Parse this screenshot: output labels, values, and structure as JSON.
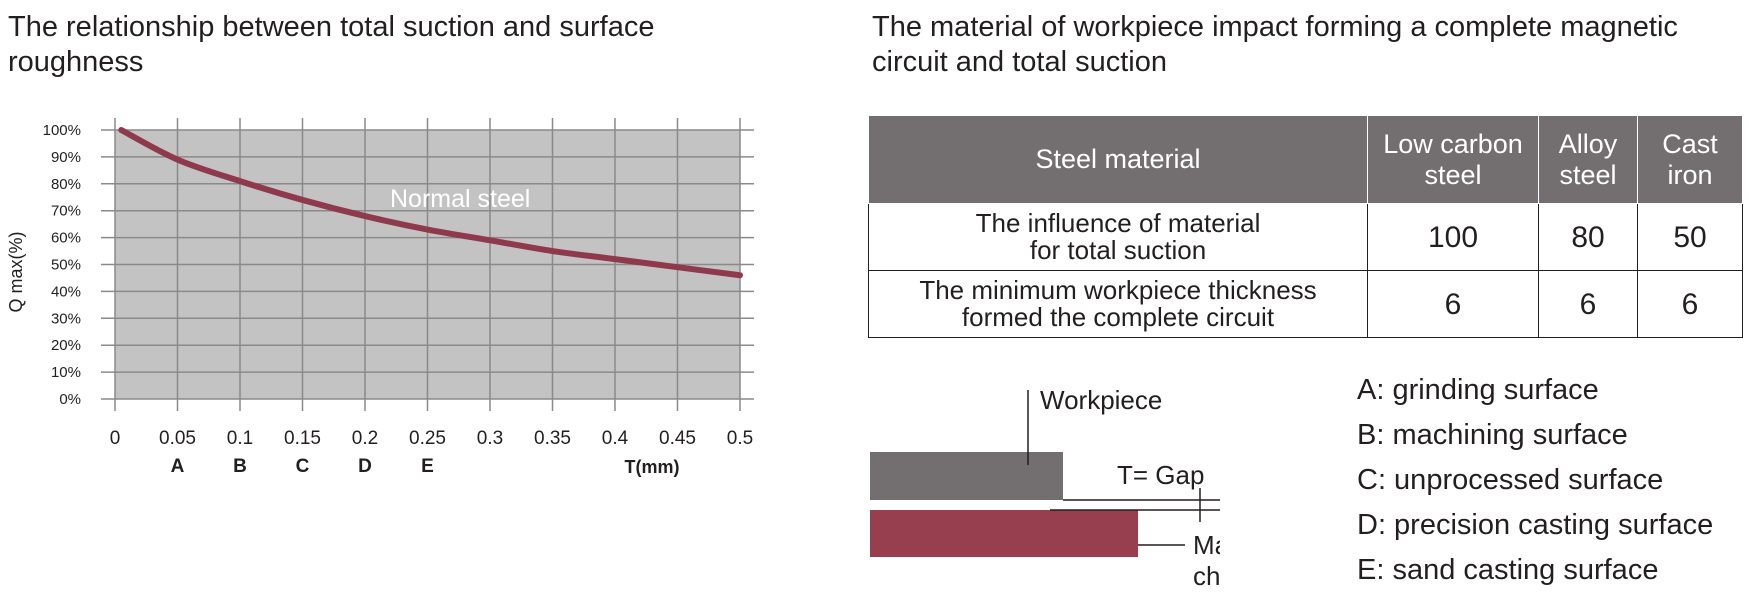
{
  "left_title": "The relationship between total suction and surface roughness",
  "right_title": "The material of workpiece impact forming a complete magnetic circuit and total suction",
  "chart_data": {
    "type": "line",
    "title": "The relationship between total suction and surface roughness",
    "xlabel": "T(mm)",
    "ylabel": "Q max(%)",
    "xlim": [
      0,
      0.5
    ],
    "ylim": [
      0,
      100
    ],
    "x_ticks": [
      "0",
      "0.05",
      "0.1",
      "0.15",
      "0.2",
      "0.25",
      "0.3",
      "0.35",
      "0.4",
      "0.45",
      "0.5"
    ],
    "y_ticks": [
      "0%",
      "10%",
      "20%",
      "30%",
      "40%",
      "50%",
      "60%",
      "70%",
      "80%",
      "90%",
      "100%"
    ],
    "x_sublabels": [
      {
        "x": 0.05,
        "label": "A"
      },
      {
        "x": 0.1,
        "label": "B"
      },
      {
        "x": 0.15,
        "label": "C"
      },
      {
        "x": 0.2,
        "label": "D"
      },
      {
        "x": 0.25,
        "label": "E"
      }
    ],
    "grid": true,
    "series": [
      {
        "name": "Normal steel",
        "color": "#8e3a4c",
        "x": [
          0.005,
          0.05,
          0.1,
          0.15,
          0.2,
          0.25,
          0.3,
          0.35,
          0.4,
          0.45,
          0.5
        ],
        "y": [
          100,
          89,
          81,
          74,
          68,
          63,
          59,
          55,
          52,
          49,
          46
        ]
      }
    ]
  },
  "table": {
    "headers": [
      "Steel material",
      "Low carbon\nsteel",
      "Alloy\nsteel",
      "Cast\niron"
    ],
    "rows": [
      {
        "label": "The influence of material\nfor total suction",
        "values": [
          "100",
          "80",
          "50"
        ]
      },
      {
        "label": "The minimum workpiece thickness\nformed the complete circuit",
        "values": [
          "6",
          "6",
          "6"
        ]
      }
    ]
  },
  "diagram": {
    "workpiece_label": "Workpiece",
    "gap_label": "T= Gap",
    "chuck_label_line1": "Magnetic",
    "chuck_label_line2": "chuck",
    "workpiece_color": "#736e6f",
    "chuck_color": "#973f4f"
  },
  "legend": [
    "A: grinding surface",
    "B: machining surface",
    "C: unprocessed surface",
    "D: precision casting surface",
    "E: sand casting surface"
  ]
}
